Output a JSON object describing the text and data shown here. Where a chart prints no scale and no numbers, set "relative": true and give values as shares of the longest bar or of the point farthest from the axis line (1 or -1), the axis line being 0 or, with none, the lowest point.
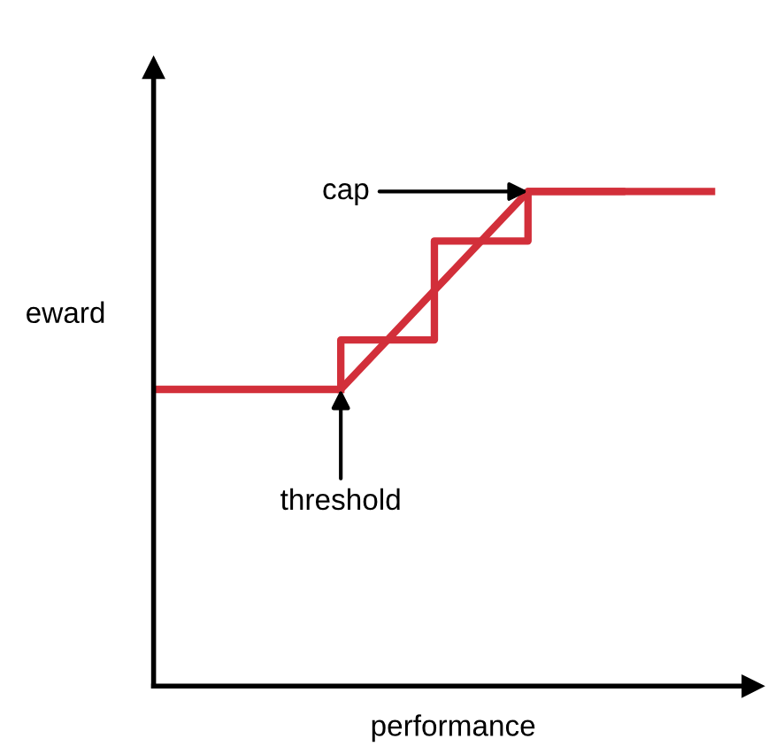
{
  "chart_data": {
    "type": "line",
    "relative": true,
    "xlabel": "performance",
    "ylabel": "eward",
    "categories": [
      null,
      null,
      null,
      null,
      null,
      null,
      null
    ],
    "series": [
      {
        "color": "#d22f3a",
        "values": [
          0.6,
          0.6,
          0.6,
          0.8,
          1,
          1,
          1
        ]
      },
      {
        "type": "step",
        "color": "#d22f3a",
        "values": [
          null,
          null,
          0.6,
          0.7,
          0.9,
          1,
          null
        ]
      }
    ],
    "annotations": [
      "cap",
      "threshold"
    ],
    "grid": false,
    "legend": false
  }
}
